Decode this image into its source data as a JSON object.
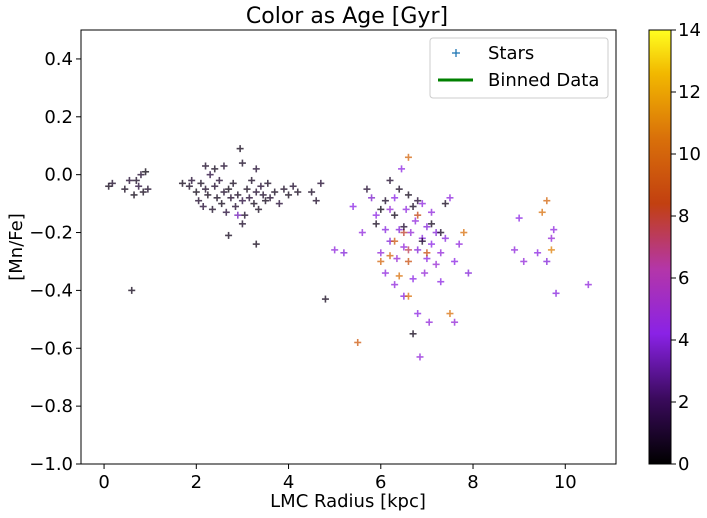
{
  "chart_data": {
    "type": "scatter",
    "title": "Color as Age [Gyr]",
    "xlabel": "LMC Radius [kpc]",
    "ylabel": "[Mn/Fe]",
    "xlim": [
      -0.5,
      11.1
    ],
    "ylim": [
      -1.0,
      0.5
    ],
    "x_ticks": [
      0,
      2,
      4,
      6,
      8,
      10
    ],
    "x_tick_labels": [
      "0",
      "2",
      "4",
      "6",
      "8",
      "10"
    ],
    "y_ticks": [
      0.4,
      0.2,
      0.0,
      -0.2,
      -0.4,
      -0.6,
      -0.8,
      -1.0
    ],
    "y_tick_labels": [
      "0.4",
      "0.2",
      "0.0",
      "−0.2",
      "−0.4",
      "−0.6",
      "−0.8",
      "−1.0"
    ],
    "grid": false,
    "legend": {
      "position": "top-right",
      "entries": [
        {
          "label": "Stars",
          "marker": "+",
          "color": "#1f77b4"
        },
        {
          "label": "Binned Data",
          "marker": "line",
          "color": "#008000"
        }
      ]
    },
    "colorbar": {
      "label": "",
      "range": [
        0,
        14
      ],
      "ticks": [
        0,
        2,
        4,
        6,
        8,
        10,
        12,
        14
      ],
      "tick_labels": [
        "0",
        "2",
        "4",
        "6",
        "8",
        "10",
        "12",
        "14"
      ],
      "colormap": "gnuplot"
    },
    "series": [
      {
        "name": "Stars",
        "points": [
          [
            0.1,
            -0.04,
            0.5
          ],
          [
            0.18,
            -0.03,
            0.8
          ],
          [
            0.45,
            -0.05,
            0.6
          ],
          [
            0.55,
            -0.02,
            1.0
          ],
          [
            0.65,
            -0.07,
            0.4
          ],
          [
            0.7,
            -0.02,
            0.7
          ],
          [
            0.75,
            -0.04,
            1.2
          ],
          [
            0.8,
            0.0,
            0.9
          ],
          [
            0.85,
            -0.06,
            0.5
          ],
          [
            0.9,
            0.01,
            0.3
          ],
          [
            0.95,
            -0.05,
            0.8
          ],
          [
            0.6,
            -0.4,
            0.5
          ],
          [
            1.7,
            -0.03,
            0.5
          ],
          [
            1.85,
            -0.04,
            0.7
          ],
          [
            1.9,
            -0.02,
            1.0
          ],
          [
            2.0,
            -0.06,
            0.4
          ],
          [
            2.05,
            -0.09,
            0.9
          ],
          [
            2.1,
            -0.03,
            0.6
          ],
          [
            2.15,
            -0.11,
            1.1
          ],
          [
            2.2,
            -0.05,
            0.8
          ],
          [
            2.25,
            -0.07,
            0.5
          ],
          [
            2.3,
            0.0,
            1.3
          ],
          [
            2.35,
            -0.12,
            0.7
          ],
          [
            2.4,
            -0.04,
            0.9
          ],
          [
            2.45,
            -0.08,
            0.6
          ],
          [
            2.5,
            -0.02,
            1.0
          ],
          [
            2.55,
            -0.1,
            0.5
          ],
          [
            2.6,
            -0.06,
            0.8
          ],
          [
            2.65,
            -0.13,
            1.2
          ],
          [
            2.7,
            -0.05,
            0.4
          ],
          [
            2.75,
            -0.08,
            0.9
          ],
          [
            2.8,
            -0.03,
            0.6
          ],
          [
            2.85,
            -0.11,
            1.0
          ],
          [
            2.9,
            -0.07,
            0.7
          ],
          [
            2.95,
            0.09,
            0.5
          ],
          [
            3.0,
            -0.09,
            1.3
          ],
          [
            3.05,
            -0.14,
            0.8
          ],
          [
            3.1,
            -0.05,
            0.6
          ],
          [
            3.15,
            -0.08,
            1.1
          ],
          [
            3.2,
            -0.02,
            0.7
          ],
          [
            3.25,
            -0.1,
            0.5
          ],
          [
            3.3,
            -0.06,
            0.9
          ],
          [
            3.35,
            -0.12,
            0.6
          ],
          [
            3.4,
            -0.04,
            1.0
          ],
          [
            3.45,
            -0.07,
            0.8
          ],
          [
            3.5,
            -0.09,
            0.5
          ],
          [
            3.55,
            -0.03,
            0.7
          ],
          [
            3.6,
            -0.08,
            0.9
          ],
          [
            3.7,
            -0.06,
            0.6
          ],
          [
            3.8,
            -0.1,
            1.1
          ],
          [
            3.9,
            -0.05,
            0.7
          ],
          [
            4.0,
            -0.07,
            0.5
          ],
          [
            4.1,
            -0.04,
            0.9
          ],
          [
            4.2,
            -0.06,
            0.6
          ],
          [
            2.2,
            0.03,
            0.8
          ],
          [
            2.4,
            0.02,
            0.6
          ],
          [
            2.6,
            0.03,
            0.9
          ],
          [
            3.0,
            0.04,
            0.7
          ],
          [
            3.3,
            0.02,
            1.0
          ],
          [
            2.7,
            -0.21,
            0.6
          ],
          [
            3.0,
            -0.17,
            0.8
          ],
          [
            3.3,
            -0.24,
            0.5
          ],
          [
            2.9,
            -0.14,
            3.5
          ],
          [
            4.8,
            -0.43,
            0.6
          ],
          [
            4.5,
            -0.06,
            0.7
          ],
          [
            4.6,
            -0.09,
            0.8
          ],
          [
            4.7,
            -0.03,
            1.0
          ],
          [
            5.0,
            -0.26,
            4.5
          ],
          [
            5.2,
            -0.27,
            4.0
          ],
          [
            5.5,
            -0.58,
            9.5
          ],
          [
            5.4,
            -0.11,
            4.2
          ],
          [
            5.6,
            -0.2,
            4.5
          ],
          [
            5.8,
            -0.08,
            3.8
          ],
          [
            5.9,
            -0.14,
            4.3
          ],
          [
            6.0,
            -0.27,
            4.6
          ],
          [
            6.1,
            -0.19,
            4.1
          ],
          [
            6.1,
            -0.34,
            4.4
          ],
          [
            6.2,
            -0.12,
            4.7
          ],
          [
            6.2,
            -0.23,
            4.0
          ],
          [
            6.3,
            -0.38,
            4.5
          ],
          [
            6.3,
            -0.08,
            4.2
          ],
          [
            6.35,
            -0.29,
            4.8
          ],
          [
            6.4,
            -0.19,
            4.0
          ],
          [
            6.4,
            -0.35,
            10.5
          ],
          [
            6.45,
            0.02,
            4.3
          ],
          [
            6.5,
            -0.25,
            4.6
          ],
          [
            6.5,
            -0.42,
            4.1
          ],
          [
            6.55,
            -0.12,
            4.4
          ],
          [
            6.6,
            -0.3,
            9.0
          ],
          [
            6.6,
            0.06,
            10.0
          ],
          [
            6.65,
            -0.2,
            4.7
          ],
          [
            6.7,
            -0.55,
            0.5
          ],
          [
            6.7,
            -0.36,
            4.2
          ],
          [
            6.75,
            -0.16,
            4.5
          ],
          [
            6.8,
            -0.26,
            4.0
          ],
          [
            6.8,
            -0.48,
            4.3
          ],
          [
            6.85,
            -0.63,
            4.6
          ],
          [
            6.9,
            -0.22,
            4.1
          ],
          [
            6.9,
            -0.1,
            4.4
          ],
          [
            6.95,
            -0.34,
            4.7
          ],
          [
            7.0,
            -0.18,
            4.0
          ],
          [
            7.0,
            -0.29,
            4.3
          ],
          [
            7.05,
            -0.51,
            4.6
          ],
          [
            7.1,
            -0.24,
            4.2
          ],
          [
            7.1,
            -0.13,
            4.5
          ],
          [
            7.2,
            -0.31,
            4.8
          ],
          [
            7.2,
            -0.2,
            4.0
          ],
          [
            7.3,
            -0.37,
            4.3
          ],
          [
            7.3,
            -0.27,
            4.6
          ],
          [
            7.4,
            -0.22,
            4.1
          ],
          [
            7.5,
            -0.08,
            4.4
          ],
          [
            7.5,
            -0.48,
            10.5
          ],
          [
            7.6,
            -0.51,
            4.7
          ],
          [
            7.6,
            -0.3,
            4.2
          ],
          [
            7.7,
            -0.24,
            4.5
          ],
          [
            7.8,
            -0.2,
            10.5
          ],
          [
            7.9,
            -0.34,
            4.0
          ],
          [
            6.2,
            -0.28,
            10.0
          ],
          [
            6.3,
            -0.23,
            9.5
          ],
          [
            6.5,
            -0.2,
            8.0
          ],
          [
            6.6,
            -0.26,
            7.5
          ],
          [
            6.8,
            -0.14,
            8.5
          ],
          [
            7.0,
            -0.27,
            9.0
          ],
          [
            6.0,
            -0.3,
            10.0
          ],
          [
            6.6,
            -0.42,
            10.5
          ],
          [
            5.9,
            -0.17,
            0.6
          ],
          [
            6.1,
            -0.09,
            0.8
          ],
          [
            6.3,
            -0.14,
            0.5
          ],
          [
            6.5,
            -0.18,
            1.0
          ],
          [
            6.7,
            -0.11,
            0.7
          ],
          [
            6.9,
            -0.23,
            0.9
          ],
          [
            7.1,
            -0.17,
            0.6
          ],
          [
            7.3,
            -0.2,
            0.8
          ],
          [
            6.4,
            -0.05,
            0.7
          ],
          [
            6.6,
            -0.07,
            0.5
          ],
          [
            6.2,
            -0.02,
            0.9
          ],
          [
            6.8,
            -0.09,
            1.1
          ],
          [
            7.4,
            -0.1,
            0.6
          ],
          [
            5.7,
            -0.05,
            1.0
          ],
          [
            6.0,
            -0.12,
            0.4
          ],
          [
            8.9,
            -0.26,
            4.5
          ],
          [
            9.0,
            -0.15,
            4.2
          ],
          [
            9.1,
            -0.3,
            4.6
          ],
          [
            9.4,
            -0.27,
            4.3
          ],
          [
            9.5,
            -0.13,
            10.5
          ],
          [
            9.6,
            -0.09,
            10.0
          ],
          [
            9.6,
            -0.3,
            4.0
          ],
          [
            9.7,
            -0.22,
            4.7
          ],
          [
            9.7,
            -0.26,
            11.0
          ],
          [
            9.75,
            -0.19,
            4.4
          ],
          [
            9.8,
            -0.41,
            4.1
          ],
          [
            10.5,
            -0.38,
            4.5
          ]
        ]
      },
      {
        "name": "Binned Data",
        "points": []
      }
    ]
  }
}
